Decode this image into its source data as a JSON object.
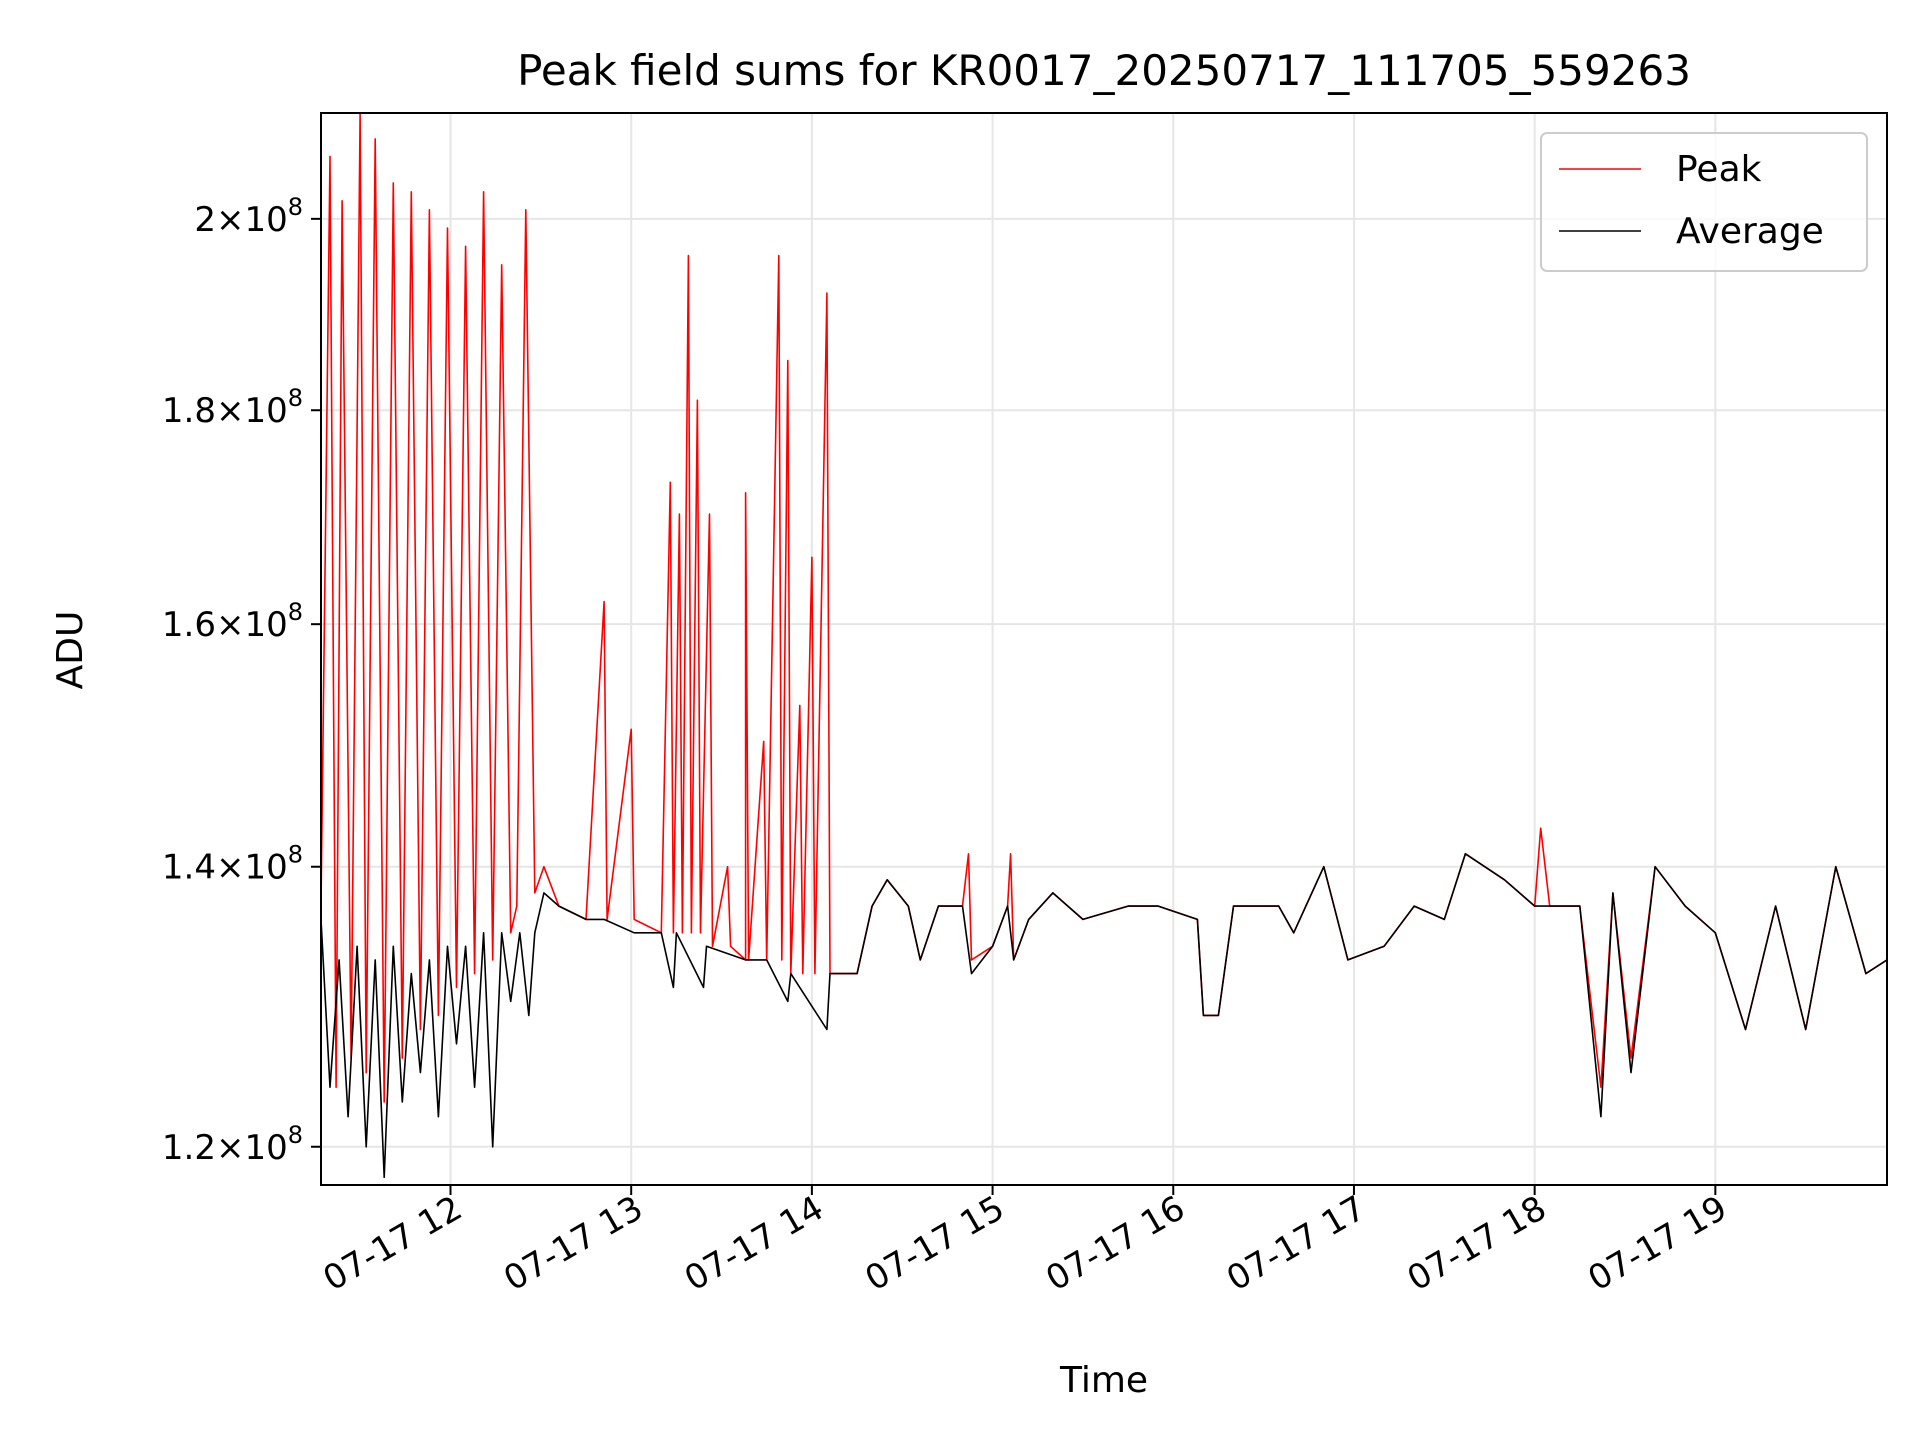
{
  "chart_data": {
    "type": "line",
    "title": "Peak field sums for KR0017_20250717_111705_559263",
    "xlabel": "Time",
    "ylabel": "ADU",
    "x_range": [
      "07-17 11:17",
      "07-17 19:57"
    ],
    "ylim": [
      117500000,
      212000000
    ],
    "y_scale": "log",
    "x_ticks": [
      "07-17 12",
      "07-17 13",
      "07-17 14",
      "07-17 15",
      "07-17 16",
      "07-17 17",
      "07-17 18",
      "07-17 19"
    ],
    "y_ticks": [
      {
        "value": 120000000,
        "mantissa": "1.2",
        "exponent": "8"
      },
      {
        "value": 140000000,
        "mantissa": "1.4",
        "exponent": "8"
      },
      {
        "value": 160000000,
        "mantissa": "1.6",
        "exponent": "8"
      },
      {
        "value": 180000000,
        "mantissa": "1.8",
        "exponent": "8"
      },
      {
        "value": 200000000,
        "mantissa": "2",
        "exponent": "8"
      }
    ],
    "grid": true,
    "legend_position": "top-right",
    "series": [
      {
        "name": "Peak",
        "color": "#ff0000",
        "points": [
          [
            "07-17 11:17",
            137000000
          ],
          [
            "07-17 11:20",
            207000000
          ],
          [
            "07-17 11:22",
            124000000
          ],
          [
            "07-17 11:24",
            202000000
          ],
          [
            "07-17 11:27",
            126000000
          ],
          [
            "07-17 11:30",
            212000000
          ],
          [
            "07-17 11:32",
            125000000
          ],
          [
            "07-17 11:35",
            209000000
          ],
          [
            "07-17 11:38",
            123000000
          ],
          [
            "07-17 11:41",
            204000000
          ],
          [
            "07-17 11:44",
            126000000
          ],
          [
            "07-17 11:47",
            203000000
          ],
          [
            "07-17 11:50",
            128000000
          ],
          [
            "07-17 11:53",
            201000000
          ],
          [
            "07-17 11:56",
            129000000
          ],
          [
            "07-17 11:59",
            199000000
          ],
          [
            "07-17 12:02",
            131000000
          ],
          [
            "07-17 12:05",
            197000000
          ],
          [
            "07-17 12:08",
            132000000
          ],
          [
            "07-17 12:11",
            203000000
          ],
          [
            "07-17 12:14",
            133000000
          ],
          [
            "07-17 12:17",
            195000000
          ],
          [
            "07-17 12:20",
            135000000
          ],
          [
            "07-17 12:22",
            137000000
          ],
          [
            "07-17 12:25",
            201000000
          ],
          [
            "07-17 12:28",
            138000000
          ],
          [
            "07-17 12:31",
            140000000
          ],
          [
            "07-17 12:36",
            137000000
          ],
          [
            "07-17 12:45",
            136000000
          ],
          [
            "07-17 12:51",
            162000000
          ],
          [
            "07-17 12:52",
            136000000
          ],
          [
            "07-17 13:00",
            151000000
          ],
          [
            "07-17 13:01",
            136000000
          ],
          [
            "07-17 13:10",
            135000000
          ],
          [
            "07-17 13:13",
            173000000
          ],
          [
            "07-17 13:14",
            135000000
          ],
          [
            "07-17 13:16",
            170000000
          ],
          [
            "07-17 13:17",
            135000000
          ],
          [
            "07-17 13:19",
            196000000
          ],
          [
            "07-17 13:20",
            135000000
          ],
          [
            "07-17 13:22",
            181000000
          ],
          [
            "07-17 13:23",
            135000000
          ],
          [
            "07-17 13:26",
            170000000
          ],
          [
            "07-17 13:27",
            134000000
          ],
          [
            "07-17 13:32",
            140000000
          ],
          [
            "07-17 13:33",
            134000000
          ],
          [
            "07-17 13:38",
            133000000
          ],
          [
            "07-17 13:38",
            172000000
          ],
          [
            "07-17 13:39",
            133000000
          ],
          [
            "07-17 13:44",
            150000000
          ],
          [
            "07-17 13:45",
            133000000
          ],
          [
            "07-17 13:49",
            196000000
          ],
          [
            "07-17 13:50",
            133000000
          ],
          [
            "07-17 13:52",
            185000000
          ],
          [
            "07-17 13:53",
            132000000
          ],
          [
            "07-17 13:56",
            153000000
          ],
          [
            "07-17 13:57",
            132000000
          ],
          [
            "07-17 14:00",
            166000000
          ],
          [
            "07-17 14:01",
            132000000
          ],
          [
            "07-17 14:05",
            192000000
          ],
          [
            "07-17 14:06",
            132000000
          ],
          [
            "07-17 14:15",
            132000000
          ],
          [
            "07-17 14:20",
            137000000
          ],
          [
            "07-17 14:25",
            139000000
          ],
          [
            "07-17 14:32",
            137000000
          ],
          [
            "07-17 14:36",
            133000000
          ],
          [
            "07-17 14:42",
            137000000
          ],
          [
            "07-17 14:50",
            137000000
          ],
          [
            "07-17 14:52",
            141000000
          ],
          [
            "07-17 14:53",
            133000000
          ],
          [
            "07-17 15:00",
            134000000
          ],
          [
            "07-17 15:05",
            137000000
          ],
          [
            "07-17 15:06",
            141000000
          ],
          [
            "07-17 15:07",
            133000000
          ],
          [
            "07-17 15:12",
            136000000
          ],
          [
            "07-17 15:20",
            138000000
          ],
          [
            "07-17 15:30",
            136000000
          ],
          [
            "07-17 15:45",
            137000000
          ],
          [
            "07-17 15:55",
            137000000
          ],
          [
            "07-17 16:08",
            136000000
          ],
          [
            "07-17 16:10",
            129000000
          ],
          [
            "07-17 16:15",
            129000000
          ],
          [
            "07-17 16:20",
            137000000
          ],
          [
            "07-17 16:35",
            137000000
          ],
          [
            "07-17 16:40",
            135000000
          ],
          [
            "07-17 16:50",
            140000000
          ],
          [
            "07-17 16:58",
            133000000
          ],
          [
            "07-17 17:10",
            134000000
          ],
          [
            "07-17 17:20",
            137000000
          ],
          [
            "07-17 17:30",
            136000000
          ],
          [
            "07-17 17:37",
            141000000
          ],
          [
            "07-17 17:50",
            139000000
          ],
          [
            "07-17 18:00",
            137000000
          ],
          [
            "07-17 18:02",
            143000000
          ],
          [
            "07-17 18:05",
            137000000
          ],
          [
            "07-17 18:15",
            137000000
          ],
          [
            "07-17 18:22",
            124000000
          ],
          [
            "07-17 18:26",
            138000000
          ],
          [
            "07-17 18:32",
            126000000
          ],
          [
            "07-17 18:40",
            140000000
          ],
          [
            "07-17 18:50",
            137000000
          ],
          [
            "07-17 19:00",
            135000000
          ],
          [
            "07-17 19:10",
            128000000
          ],
          [
            "07-17 19:20",
            137000000
          ],
          [
            "07-17 19:30",
            128000000
          ],
          [
            "07-17 19:40",
            140000000
          ],
          [
            "07-17 19:50",
            132000000
          ],
          [
            "07-17 19:57",
            133000000
          ]
        ]
      },
      {
        "name": "Average",
        "color": "#000000",
        "points": [
          [
            "07-17 11:17",
            136000000
          ],
          [
            "07-17 11:20",
            124000000
          ],
          [
            "07-17 11:23",
            133000000
          ],
          [
            "07-17 11:26",
            122000000
          ],
          [
            "07-17 11:29",
            134000000
          ],
          [
            "07-17 11:32",
            120000000
          ],
          [
            "07-17 11:35",
            133000000
          ],
          [
            "07-17 11:38",
            118000000
          ],
          [
            "07-17 11:41",
            134000000
          ],
          [
            "07-17 11:44",
            123000000
          ],
          [
            "07-17 11:47",
            132000000
          ],
          [
            "07-17 11:50",
            125000000
          ],
          [
            "07-17 11:53",
            133000000
          ],
          [
            "07-17 11:56",
            122000000
          ],
          [
            "07-17 11:59",
            134000000
          ],
          [
            "07-17 12:02",
            127000000
          ],
          [
            "07-17 12:05",
            134000000
          ],
          [
            "07-17 12:08",
            124000000
          ],
          [
            "07-17 12:11",
            135000000
          ],
          [
            "07-17 12:14",
            120000000
          ],
          [
            "07-17 12:17",
            135000000
          ],
          [
            "07-17 12:20",
            130000000
          ],
          [
            "07-17 12:23",
            135000000
          ],
          [
            "07-17 12:26",
            129000000
          ],
          [
            "07-17 12:28",
            135000000
          ],
          [
            "07-17 12:31",
            138000000
          ],
          [
            "07-17 12:36",
            137000000
          ],
          [
            "07-17 12:45",
            136000000
          ],
          [
            "07-17 12:51",
            136000000
          ],
          [
            "07-17 13:01",
            135000000
          ],
          [
            "07-17 13:10",
            135000000
          ],
          [
            "07-17 13:14",
            131000000
          ],
          [
            "07-17 13:15",
            135000000
          ],
          [
            "07-17 13:24",
            131000000
          ],
          [
            "07-17 13:25",
            134000000
          ],
          [
            "07-17 13:38",
            133000000
          ],
          [
            "07-17 13:45",
            133000000
          ],
          [
            "07-17 13:52",
            130000000
          ],
          [
            "07-17 13:53",
            132000000
          ],
          [
            "07-17 14:05",
            128000000
          ],
          [
            "07-17 14:06",
            132000000
          ],
          [
            "07-17 14:15",
            132000000
          ],
          [
            "07-17 14:20",
            137000000
          ],
          [
            "07-17 14:25",
            139000000
          ],
          [
            "07-17 14:32",
            137000000
          ],
          [
            "07-17 14:36",
            133000000
          ],
          [
            "07-17 14:42",
            137000000
          ],
          [
            "07-17 14:50",
            137000000
          ],
          [
            "07-17 14:53",
            132000000
          ],
          [
            "07-17 15:00",
            134000000
          ],
          [
            "07-17 15:05",
            137000000
          ],
          [
            "07-17 15:07",
            133000000
          ],
          [
            "07-17 15:12",
            136000000
          ],
          [
            "07-17 15:20",
            138000000
          ],
          [
            "07-17 15:30",
            136000000
          ],
          [
            "07-17 15:45",
            137000000
          ],
          [
            "07-17 15:55",
            137000000
          ],
          [
            "07-17 16:08",
            136000000
          ],
          [
            "07-17 16:10",
            129000000
          ],
          [
            "07-17 16:15",
            129000000
          ],
          [
            "07-17 16:20",
            137000000
          ],
          [
            "07-17 16:35",
            137000000
          ],
          [
            "07-17 16:40",
            135000000
          ],
          [
            "07-17 16:50",
            140000000
          ],
          [
            "07-17 16:58",
            133000000
          ],
          [
            "07-17 17:10",
            134000000
          ],
          [
            "07-17 17:20",
            137000000
          ],
          [
            "07-17 17:30",
            136000000
          ],
          [
            "07-17 17:37",
            141000000
          ],
          [
            "07-17 17:50",
            139000000
          ],
          [
            "07-17 18:00",
            137000000
          ],
          [
            "07-17 18:15",
            137000000
          ],
          [
            "07-17 18:22",
            122000000
          ],
          [
            "07-17 18:26",
            138000000
          ],
          [
            "07-17 18:32",
            125000000
          ],
          [
            "07-17 18:40",
            140000000
          ],
          [
            "07-17 18:50",
            137000000
          ],
          [
            "07-17 19:00",
            135000000
          ],
          [
            "07-17 19:10",
            128000000
          ],
          [
            "07-17 19:20",
            137000000
          ],
          [
            "07-17 19:30",
            128000000
          ],
          [
            "07-17 19:40",
            140000000
          ],
          [
            "07-17 19:50",
            132000000
          ],
          [
            "07-17 19:57",
            133000000
          ]
        ]
      }
    ]
  }
}
